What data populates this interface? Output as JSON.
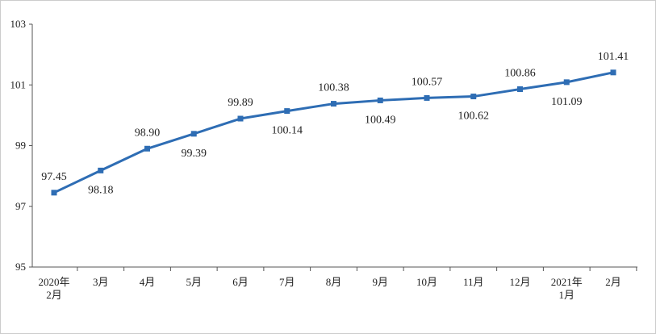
{
  "chart_data": {
    "type": "line",
    "title": "",
    "xlabel": "",
    "ylabel": "",
    "ylim": [
      95,
      103
    ],
    "yticks": [
      95,
      97,
      99,
      101,
      103
    ],
    "grid": false,
    "categories": [
      [
        "2020年",
        "2月"
      ],
      [
        "3月"
      ],
      [
        "4月"
      ],
      [
        "5月"
      ],
      [
        "6月"
      ],
      [
        "7月"
      ],
      [
        "8月"
      ],
      [
        "9月"
      ],
      [
        "10月"
      ],
      [
        "11月"
      ],
      [
        "12月"
      ],
      [
        "2021年",
        "1月"
      ],
      [
        "2月"
      ]
    ],
    "series": [
      {
        "values": [
          97.45,
          98.18,
          98.9,
          99.39,
          99.89,
          100.14,
          100.38,
          100.49,
          100.57,
          100.62,
          100.86,
          101.09,
          101.41
        ],
        "labels": [
          "97.45",
          "98.18",
          "98.90",
          "99.39",
          "99.89",
          "100.14",
          "100.38",
          "100.49",
          "100.57",
          "100.62",
          "100.86",
          "101.09",
          "101.41"
        ],
        "label_positions": [
          "above",
          "below",
          "above",
          "below",
          "above",
          "below",
          "above",
          "below",
          "above",
          "below",
          "above",
          "below",
          "above"
        ]
      }
    ],
    "line_color": "#2e6db4"
  }
}
